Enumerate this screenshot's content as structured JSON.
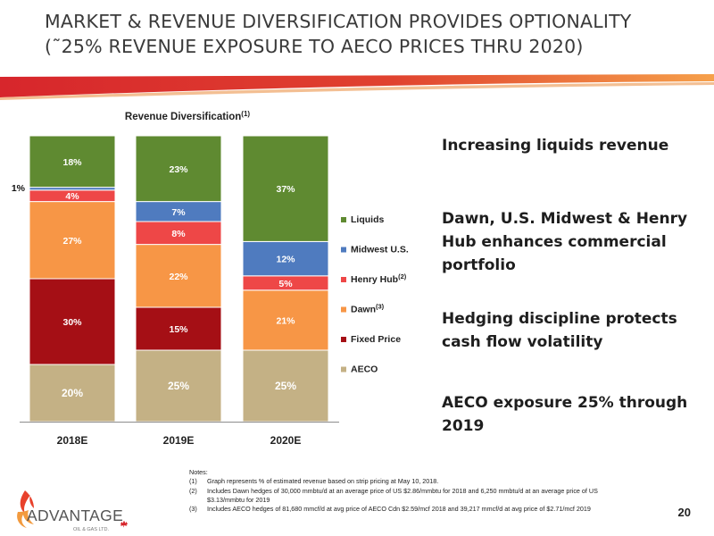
{
  "slide": {
    "title_line1": "MARKET & REVENUE DIVERSIFICATION PROVIDES OPTIONALITY",
    "title_line2": "(˜25% REVENUE EXPOSURE TO AECO PRICES THRU 2020)",
    "page_number": "20"
  },
  "bullets": [
    "Increasing liquids revenue",
    "Dawn, U.S. Midwest & Henry Hub enhances commercial portfolio",
    "Hedging discipline protects cash flow volatility",
    "AECO exposure 25% through 2019"
  ],
  "notes": {
    "heading": "Notes:",
    "items": [
      {
        "num": "(1)",
        "text": "Graph represents % of estimated revenue based on strip pricing at May 10, 2018."
      },
      {
        "num": "(2)",
        "text": "Includes Dawn hedges of 30,000 mmbtu/d at an average price of US $2.86/mmbtu for 2018 and 6,250 mmbtu/d at an average price of US $3.13/mmbtu for 2019"
      },
      {
        "num": "(3)",
        "text": "Includes AECO hedges of 81,680 mmcf/d at avg price of AECO Cdn $2.59/mcf 2018 and 39,217 mmcf/d at avg price of $2.71/mcf 2019"
      }
    ]
  },
  "logo": {
    "name": "ADVANTAGE",
    "sub": "OIL & GAS LTD."
  },
  "chart_data": {
    "type": "bar",
    "stacked": true,
    "title": "Revenue Diversification",
    "title_superscript": "(1)",
    "categories": [
      "2018E",
      "2019E",
      "2020E"
    ],
    "ylim": [
      0,
      100
    ],
    "grid": false,
    "legend_position": "right",
    "series": [
      {
        "name": "AECO",
        "superscript": "",
        "color": "#c4b185",
        "values": [
          20,
          25,
          25
        ]
      },
      {
        "name": "Fixed Price",
        "superscript": "",
        "color": "#a50f15",
        "values": [
          30,
          15,
          0
        ]
      },
      {
        "name": "Dawn",
        "superscript": "(3)",
        "color": "#f79646",
        "values": [
          27,
          22,
          21
        ]
      },
      {
        "name": "Henry Hub",
        "superscript": "(2)",
        "color": "#ee4747",
        "values": [
          4,
          8,
          5
        ]
      },
      {
        "name": "Midwest U.S.",
        "superscript": "",
        "color": "#4f7bbf",
        "values": [
          1,
          7,
          12
        ]
      },
      {
        "name": "Liquids",
        "superscript": "",
        "color": "#5f8a31",
        "values": [
          18,
          23,
          37
        ]
      }
    ],
    "legend_order": [
      "Liquids",
      "Midwest U.S.",
      "Henry Hub",
      "Dawn",
      "Fixed Price",
      "AECO"
    ]
  }
}
